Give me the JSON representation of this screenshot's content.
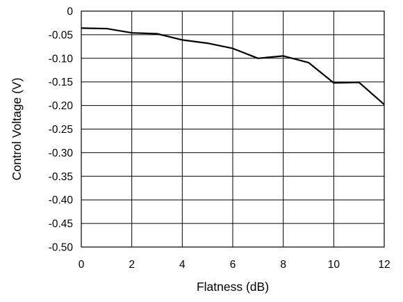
{
  "chart_data": {
    "type": "line",
    "xlabel": "Flatness (dB)",
    "ylabel": "Control Voltage (V)",
    "xlim": [
      0,
      12
    ],
    "ylim": [
      -0.5,
      0
    ],
    "x_ticks": [
      "0",
      "2",
      "4",
      "6",
      "8",
      "10",
      "12"
    ],
    "y_ticks": [
      "0",
      "-0.05",
      "-0.10",
      "-0.15",
      "-0.20",
      "-0.25",
      "-0.30",
      "-0.35",
      "-0.40",
      "-0.45",
      "-0.50"
    ],
    "grid": true,
    "series": [
      {
        "x": [
          0,
          1,
          2,
          3,
          4,
          5,
          6,
          7,
          8,
          9,
          10,
          11,
          12
        ],
        "y": [
          -0.036,
          -0.037,
          -0.046,
          -0.048,
          -0.061,
          -0.068,
          -0.079,
          -0.1,
          -0.095,
          -0.109,
          -0.152,
          -0.151,
          -0.198
        ]
      }
    ],
    "line_color": "#000000",
    "grid_color": "#000000"
  }
}
